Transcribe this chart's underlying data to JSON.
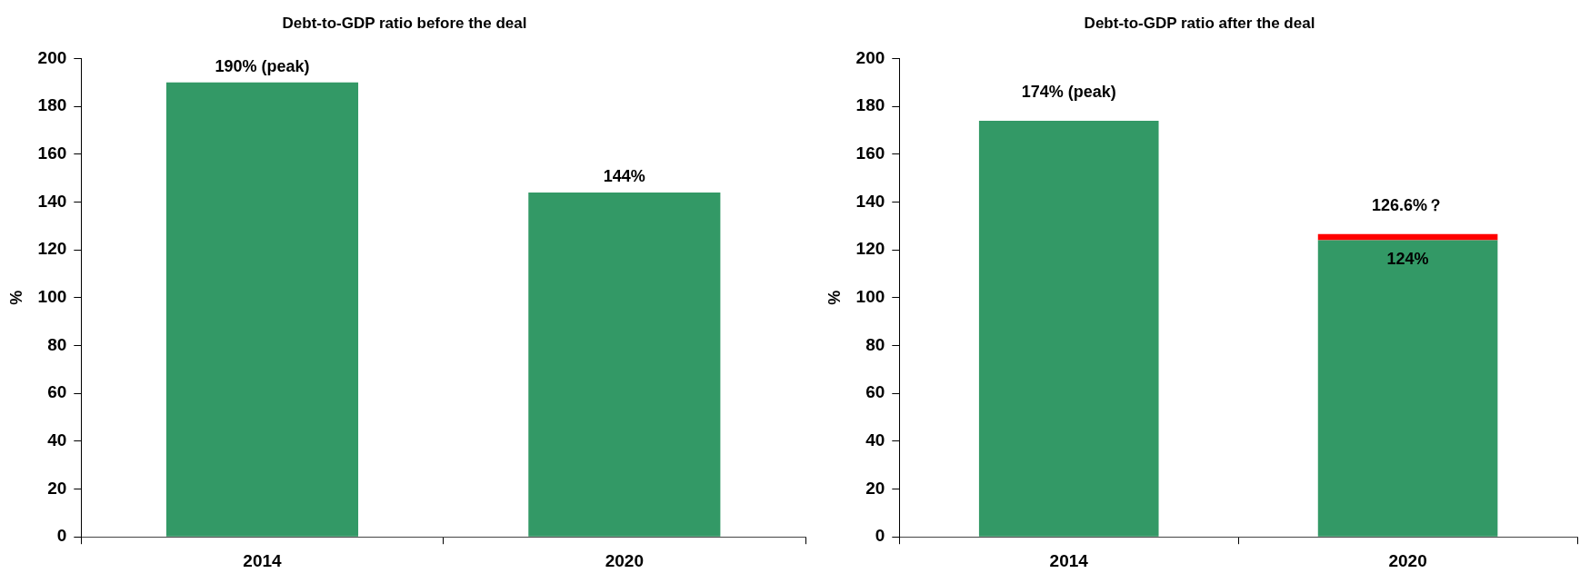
{
  "chart_data": [
    {
      "type": "bar",
      "title": "Debt-to-GDP ratio before the deal",
      "ylabel": "%",
      "categories": [
        "2014",
        "2020"
      ],
      "values": [
        190,
        144
      ],
      "color": "#339966",
      "value_labels": [
        "190% (peak)",
        "144%"
      ],
      "ylim": [
        0,
        200
      ],
      "yticks": [
        0,
        20,
        40,
        60,
        80,
        100,
        120,
        140,
        160,
        180,
        200
      ]
    },
    {
      "type": "bar",
      "title": "Debt-to-GDP ratio after the deal",
      "ylabel": "%",
      "categories": [
        "2014",
        "2020"
      ],
      "stacked": true,
      "series": [
        {
          "color": "#339966",
          "values": [
            174,
            124
          ],
          "value_labels": [
            null,
            "124%"
          ]
        },
        {
          "color": "#ff0000",
          "values": [
            null,
            2.6
          ]
        }
      ],
      "totals": [
        "174% (peak)",
        "126.6%？"
      ],
      "ylim": [
        0,
        200
      ],
      "yticks": [
        0,
        20,
        40,
        60,
        80,
        100,
        120,
        140,
        160,
        180,
        200
      ]
    }
  ]
}
